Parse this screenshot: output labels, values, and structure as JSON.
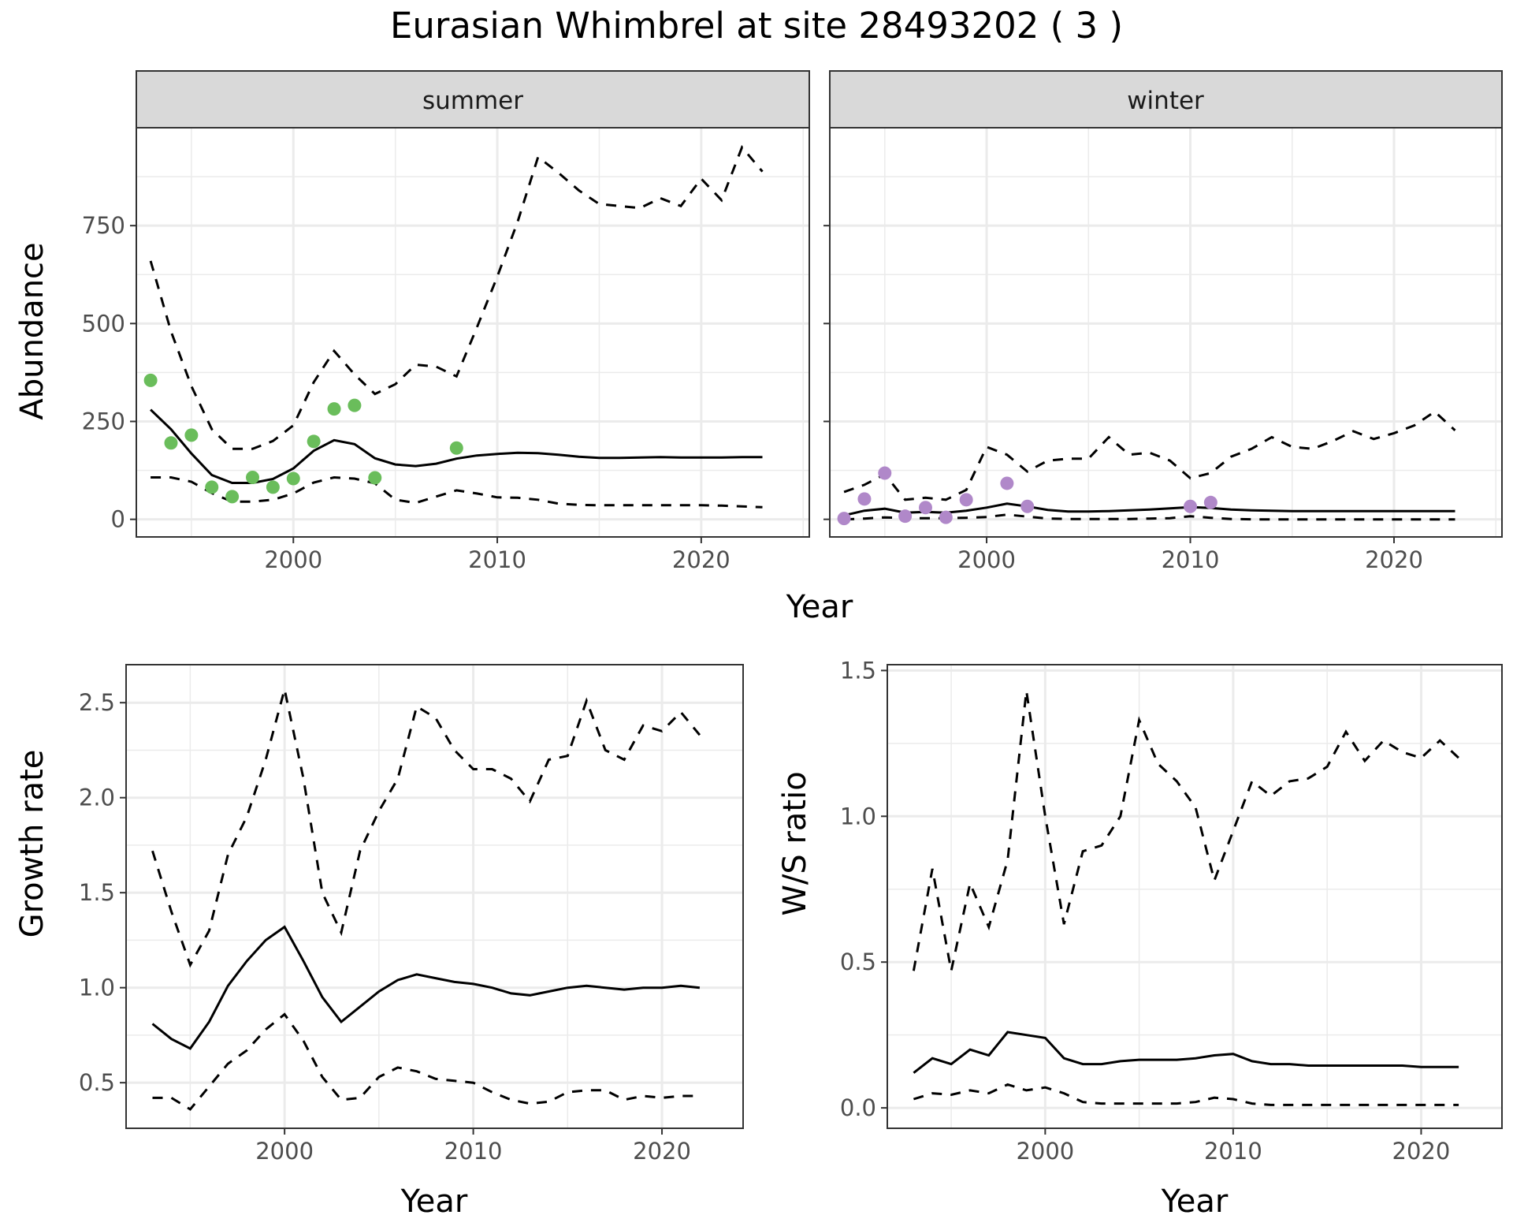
{
  "title": "Eurasian Whimbrel at site 28493202 ( 3 )",
  "colors": {
    "summer_points": "#6abd5b",
    "winter_points": "#b088c9",
    "strip_bg": "#d9d9d9"
  },
  "chart_data": [
    {
      "id": "abundance_summer",
      "type": "line",
      "facet": "summer",
      "ylabel": "Abundance",
      "xlabel": "Year",
      "xlim": [
        1992.3,
        2025.3
      ],
      "ylim": [
        -45,
        1000
      ],
      "xticks": [
        2000,
        2010,
        2020
      ],
      "xtick_labels": [
        "2000",
        "2010",
        "2020"
      ],
      "yticks": [
        0,
        250,
        500,
        750
      ],
      "ytick_labels": [
        "0",
        "250",
        "500",
        "750"
      ],
      "x": [
        1993,
        1994,
        1995,
        1996,
        1997,
        1998,
        1999,
        2000,
        2001,
        2002,
        2003,
        2004,
        2005,
        2006,
        2007,
        2008,
        2009,
        2010,
        2011,
        2012,
        2013,
        2014,
        2015,
        2016,
        2017,
        2018,
        2019,
        2020,
        2021,
        2022,
        2023
      ],
      "series": [
        {
          "role": "estimate",
          "values": [
            280,
            230,
            168,
            113,
            93,
            93,
            103,
            130,
            175,
            202,
            192,
            156,
            140,
            136,
            142,
            155,
            163,
            167,
            170,
            169,
            165,
            160,
            157,
            157,
            158,
            159,
            158,
            158,
            158,
            159,
            159
          ]
        },
        {
          "role": "upper",
          "values": [
            660,
            480,
            340,
            230,
            180,
            180,
            200,
            240,
            350,
            430,
            370,
            320,
            345,
            395,
            390,
            365,
            490,
            620,
            760,
            925,
            885,
            840,
            805,
            800,
            795,
            820,
            800,
            870,
            815,
            950,
            888
          ]
        },
        {
          "role": "lower",
          "values": [
            107,
            107,
            96,
            67,
            45,
            45,
            50,
            66,
            94,
            107,
            104,
            92,
            50,
            42,
            58,
            74,
            66,
            56,
            55,
            50,
            40,
            37,
            36,
            36,
            36,
            36,
            36,
            36,
            35,
            33,
            31
          ]
        }
      ],
      "points": {
        "x": [
          1993,
          1994,
          1995,
          1996,
          1997,
          1998,
          1999,
          2000,
          2001,
          2002,
          2003,
          2004,
          2008
        ],
        "y": [
          355,
          195,
          215,
          82,
          58,
          107,
          82,
          104,
          199,
          282,
          291,
          106,
          182
        ]
      },
      "grid": true
    },
    {
      "id": "abundance_winter",
      "type": "line",
      "facet": "winter",
      "xlabel": "Year",
      "xlim": [
        1992.3,
        2025.3
      ],
      "ylim": [
        -45,
        1000
      ],
      "xticks": [
        2000,
        2010,
        2020
      ],
      "xtick_labels": [
        "2000",
        "2010",
        "2020"
      ],
      "x": [
        1993,
        1994,
        1995,
        1996,
        1997,
        1998,
        1999,
        2000,
        2001,
        2002,
        2003,
        2004,
        2005,
        2006,
        2007,
        2008,
        2009,
        2010,
        2011,
        2012,
        2013,
        2014,
        2015,
        2016,
        2017,
        2018,
        2019,
        2020,
        2021,
        2022,
        2023
      ],
      "series": [
        {
          "role": "estimate",
          "values": [
            10,
            22,
            27,
            17,
            19,
            17,
            22,
            30,
            40,
            33,
            24,
            20,
            20,
            21,
            23,
            25,
            28,
            31,
            29,
            25,
            23,
            22,
            21,
            21,
            21,
            21,
            21,
            21,
            21,
            21,
            21
          ]
        },
        {
          "role": "upper",
          "values": [
            70,
            88,
            115,
            50,
            55,
            50,
            75,
            185,
            165,
            122,
            150,
            155,
            155,
            210,
            165,
            170,
            150,
            105,
            118,
            160,
            180,
            210,
            185,
            180,
            200,
            225,
            205,
            220,
            240,
            275,
            227
          ]
        },
        {
          "role": "lower",
          "values": [
            0,
            2,
            5,
            3,
            3,
            3,
            4,
            6,
            12,
            7,
            2,
            1,
            1,
            1,
            1,
            2,
            3,
            8,
            4,
            1,
            0,
            0,
            0,
            0,
            0,
            0,
            0,
            0,
            0,
            0,
            0
          ]
        }
      ],
      "points": {
        "x": [
          1993,
          1994,
          1995,
          1996,
          1997,
          1998,
          1999,
          2001,
          2002,
          2010,
          2011
        ],
        "y": [
          2,
          52,
          118,
          8,
          30,
          5,
          50,
          92,
          33,
          33,
          43
        ]
      },
      "grid": true
    },
    {
      "id": "growth_rate",
      "type": "line",
      "ylabel": "Growth rate",
      "xlabel": "Year",
      "xlim": [
        1991.6,
        2024.3
      ],
      "ylim": [
        0.26,
        2.7
      ],
      "xticks": [
        2000,
        2010,
        2020
      ],
      "xtick_labels": [
        "2000",
        "2010",
        "2020"
      ],
      "yticks": [
        0.5,
        1.0,
        1.5,
        2.0,
        2.5
      ],
      "ytick_labels": [
        "0.5",
        "1.0",
        "1.5",
        "2.0",
        "2.5"
      ],
      "x": [
        1993,
        1994,
        1995,
        1996,
        1997,
        1998,
        1999,
        2000,
        2001,
        2002,
        2003,
        2004,
        2005,
        2006,
        2007,
        2008,
        2009,
        2010,
        2011,
        2012,
        2013,
        2014,
        2015,
        2016,
        2017,
        2018,
        2019,
        2020,
        2021,
        2022
      ],
      "series": [
        {
          "role": "estimate",
          "values": [
            0.81,
            0.73,
            0.68,
            0.82,
            1.01,
            1.14,
            1.25,
            1.32,
            1.14,
            0.95,
            0.82,
            0.9,
            0.98,
            1.04,
            1.07,
            1.05,
            1.03,
            1.02,
            1.0,
            0.97,
            0.96,
            0.98,
            1.0,
            1.01,
            1.0,
            0.99,
            1.0,
            1.0,
            1.01,
            1.0
          ]
        },
        {
          "role": "upper",
          "values": [
            1.72,
            1.4,
            1.12,
            1.3,
            1.7,
            1.9,
            2.2,
            2.57,
            2.1,
            1.5,
            1.29,
            1.72,
            1.93,
            2.1,
            2.48,
            2.42,
            2.25,
            2.15,
            2.15,
            2.1,
            1.98,
            2.2,
            2.22,
            2.51,
            2.25,
            2.2,
            2.38,
            2.35,
            2.45,
            2.33
          ]
        },
        {
          "role": "lower",
          "values": [
            0.42,
            0.42,
            0.36,
            0.48,
            0.6,
            0.67,
            0.78,
            0.86,
            0.72,
            0.53,
            0.41,
            0.42,
            0.53,
            0.58,
            0.56,
            0.52,
            0.51,
            0.5,
            0.45,
            0.41,
            0.39,
            0.4,
            0.45,
            0.46,
            0.46,
            0.41,
            0.43,
            0.42,
            0.43,
            0.43
          ]
        }
      ],
      "grid": true
    },
    {
      "id": "ws_ratio",
      "type": "line",
      "ylabel": "W/S ratio",
      "xlabel": "Year",
      "xlim": [
        1991.6,
        2024.3
      ],
      "ylim": [
        -0.07,
        1.52
      ],
      "xticks": [
        2000,
        2010,
        2020
      ],
      "xtick_labels": [
        "2000",
        "2010",
        "2020"
      ],
      "yticks": [
        0.0,
        0.5,
        1.0,
        1.5
      ],
      "ytick_labels": [
        "0.0",
        "0.5",
        "1.0",
        "1.5"
      ],
      "x": [
        1993,
        1994,
        1995,
        1996,
        1997,
        1998,
        1999,
        2000,
        2001,
        2002,
        2003,
        2004,
        2005,
        2006,
        2007,
        2008,
        2009,
        2010,
        2011,
        2012,
        2013,
        2014,
        2015,
        2016,
        2017,
        2018,
        2019,
        2020,
        2021,
        2022
      ],
      "series": [
        {
          "role": "estimate",
          "values": [
            0.12,
            0.17,
            0.15,
            0.2,
            0.18,
            0.26,
            0.25,
            0.24,
            0.17,
            0.15,
            0.15,
            0.16,
            0.165,
            0.165,
            0.165,
            0.17,
            0.18,
            0.185,
            0.16,
            0.15,
            0.15,
            0.145,
            0.145,
            0.145,
            0.145,
            0.145,
            0.145,
            0.14,
            0.14,
            0.14
          ]
        },
        {
          "role": "upper",
          "values": [
            0.47,
            0.82,
            0.47,
            0.77,
            0.62,
            0.85,
            1.43,
            1.0,
            0.63,
            0.88,
            0.9,
            1.0,
            1.33,
            1.18,
            1.12,
            1.03,
            0.78,
            0.95,
            1.12,
            1.07,
            1.12,
            1.13,
            1.17,
            1.29,
            1.19,
            1.26,
            1.22,
            1.2,
            1.26,
            1.2
          ]
        },
        {
          "role": "lower",
          "values": [
            0.03,
            0.05,
            0.045,
            0.06,
            0.05,
            0.08,
            0.06,
            0.07,
            0.05,
            0.02,
            0.015,
            0.015,
            0.015,
            0.015,
            0.015,
            0.02,
            0.035,
            0.03,
            0.015,
            0.01,
            0.01,
            0.01,
            0.01,
            0.01,
            0.01,
            0.01,
            0.01,
            0.01,
            0.01,
            0.01
          ]
        }
      ],
      "grid": true
    }
  ]
}
